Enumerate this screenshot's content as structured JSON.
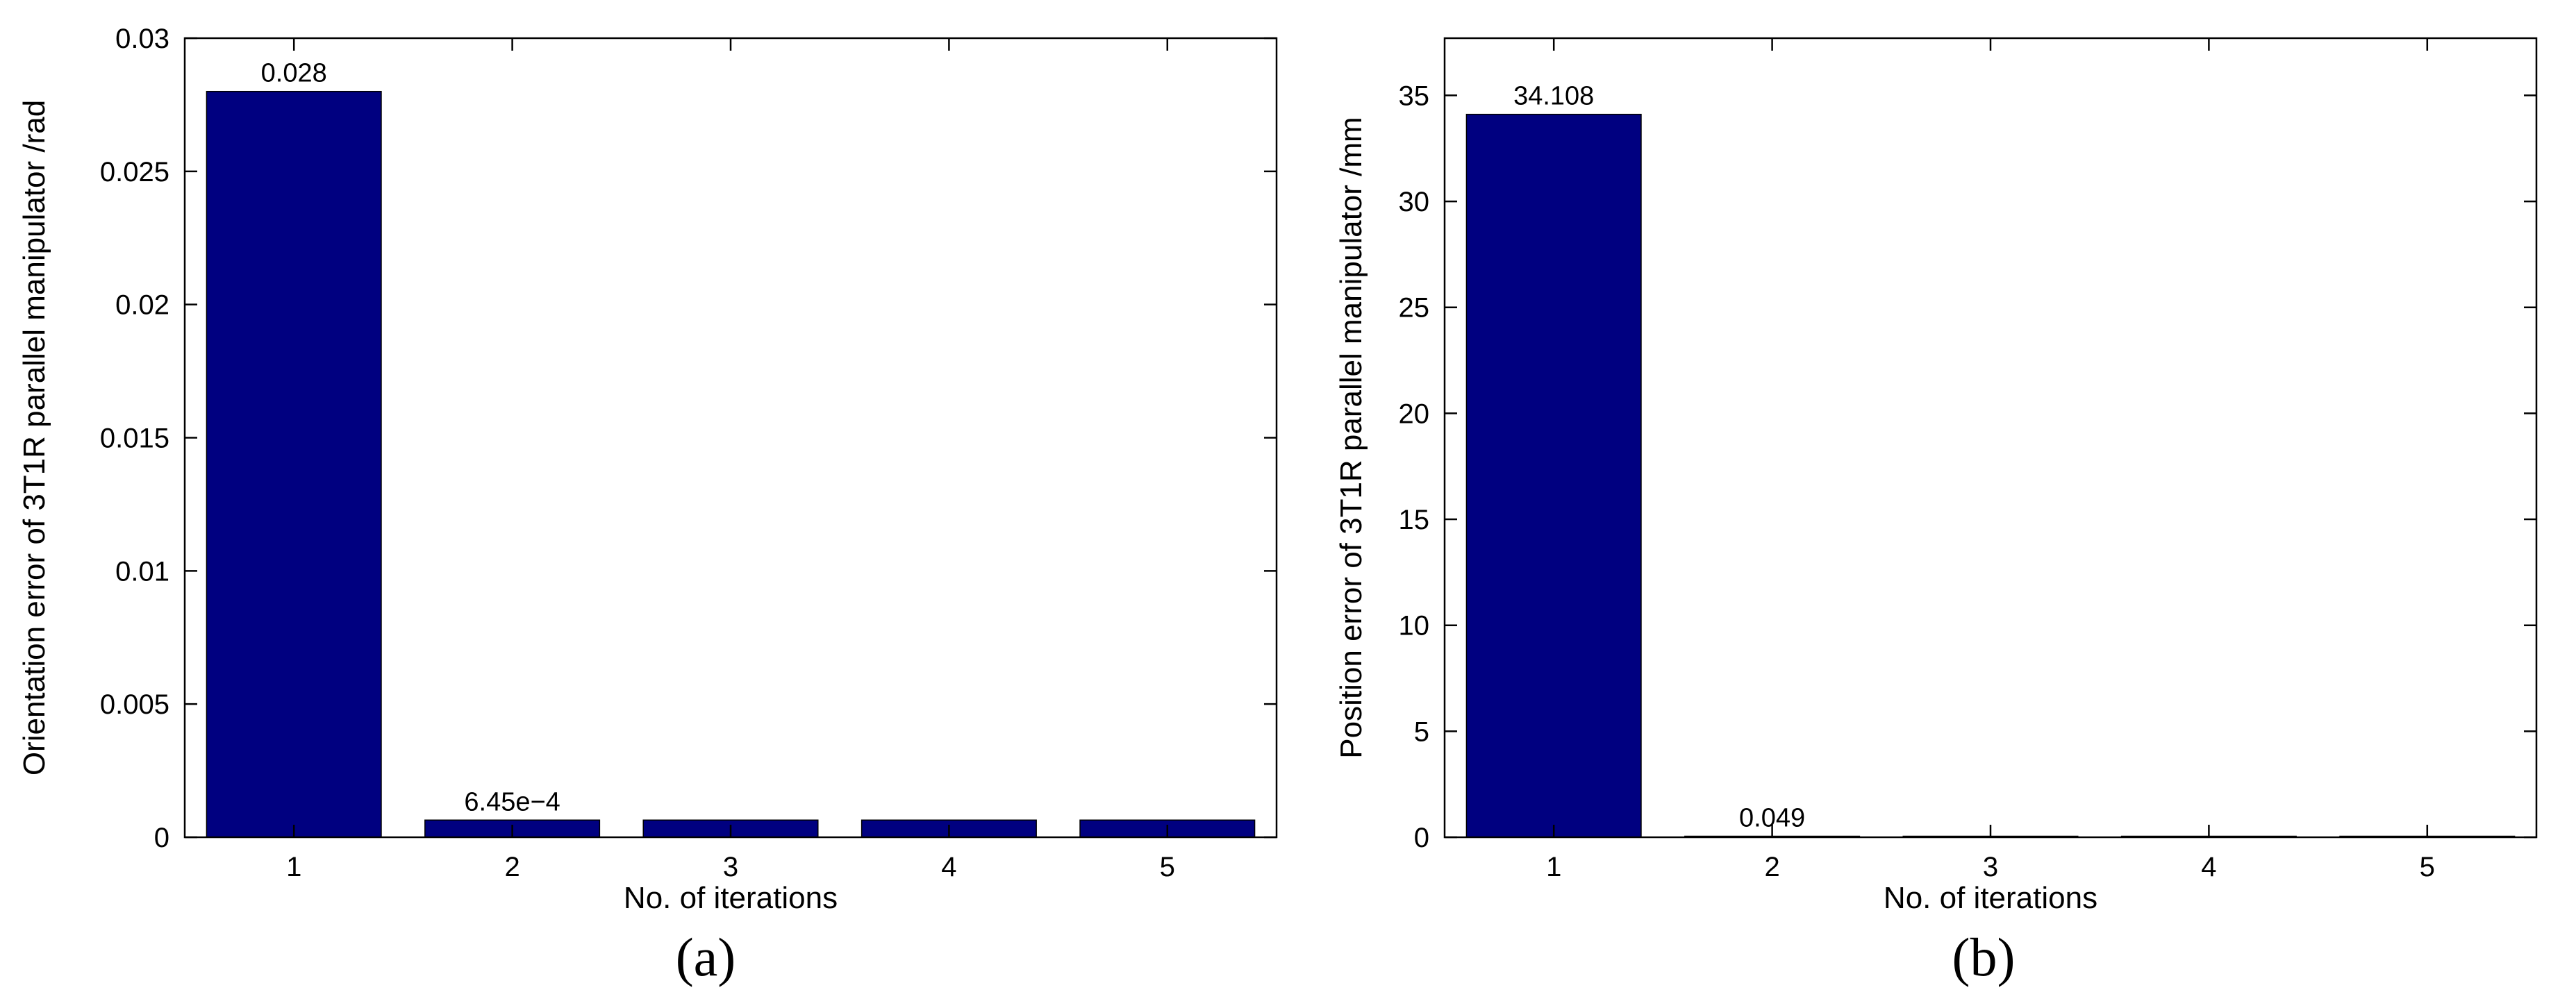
{
  "chart_data": [
    {
      "type": "bar",
      "panel_label": "(a)",
      "categories": [
        "1",
        "2",
        "3",
        "4",
        "5"
      ],
      "values": [
        0.028,
        0.000645,
        0.000645,
        0.000645,
        0.000645
      ],
      "data_labels": [
        "0.028",
        "6.45e−4",
        "",
        "",
        ""
      ],
      "title": "",
      "xlabel": "No. of iterations",
      "ylabel": "Orientation error of 3T1R parallel manipulator /rad",
      "ylim": [
        0,
        0.03
      ],
      "yticks": [
        0,
        0.005,
        0.01,
        0.015,
        0.02,
        0.025,
        0.03
      ],
      "ytick_labels": [
        "0",
        "0.005",
        "0.01",
        "0.015",
        "0.02",
        "0.025",
        "0.03"
      ],
      "grid": false,
      "bar_color": "#000080"
    },
    {
      "type": "bar",
      "panel_label": "(b)",
      "categories": [
        "1",
        "2",
        "3",
        "4",
        "5"
      ],
      "values": [
        34.108,
        0.049,
        0.049,
        0.049,
        0.049
      ],
      "data_labels": [
        "34.108",
        "0.049",
        "",
        "",
        ""
      ],
      "title": "",
      "xlabel": "No. of iterations",
      "ylabel": "Position error of 3T1R parallel manipulator /mm",
      "ylim": [
        0,
        37.7
      ],
      "yticks": [
        0,
        5,
        10,
        15,
        20,
        25,
        30,
        35
      ],
      "ytick_labels": [
        "0",
        "5",
        "10",
        "15",
        "20",
        "25",
        "30",
        "35"
      ],
      "grid": false,
      "bar_color": "#000080"
    }
  ]
}
